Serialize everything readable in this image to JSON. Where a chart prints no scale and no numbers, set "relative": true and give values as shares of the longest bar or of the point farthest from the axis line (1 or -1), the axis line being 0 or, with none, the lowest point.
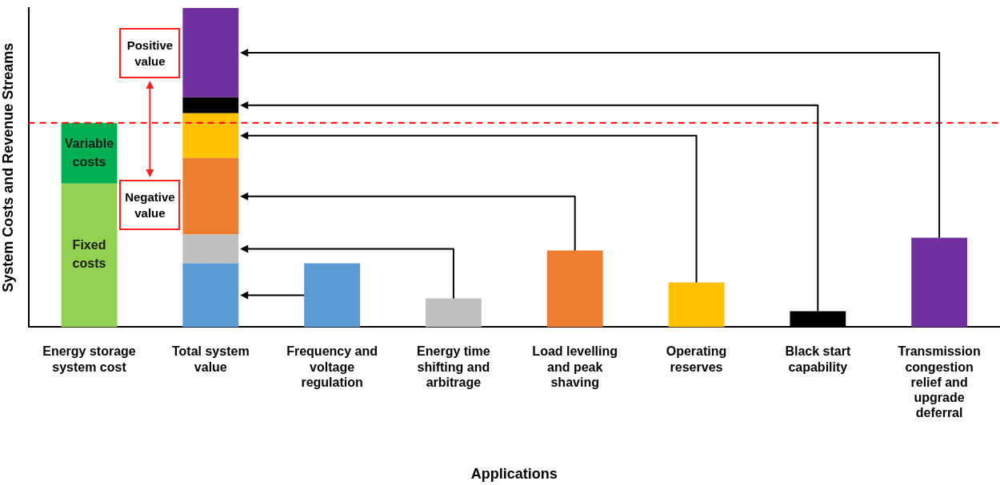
{
  "chart_data": {
    "type": "bar",
    "stacked": true,
    "relative": true,
    "xlabel": "Applications",
    "ylabel": "System Costs and Revenue Streams",
    "categories": [
      "Energy storage system cost",
      "Total system value",
      "Frequency and voltage regulation",
      "Energy time shifting and arbitrage",
      "Load levelling and peak shaving",
      "Operating reserves",
      "Black start capability",
      "Transmission congestion relief and upgrade deferral"
    ],
    "series": [
      {
        "name": "Fixed costs",
        "color": "#92d050",
        "values": [
          0.45,
          null,
          null,
          null,
          null,
          null,
          null,
          null
        ]
      },
      {
        "name": "Variable costs",
        "color": "#00b050",
        "values": [
          0.19,
          null,
          null,
          null,
          null,
          null,
          null,
          null
        ]
      },
      {
        "color": "#5b9bd5",
        "values": [
          null,
          0.2,
          0.2,
          null,
          null,
          null,
          null,
          null
        ]
      },
      {
        "color": "#bfbfbf",
        "values": [
          null,
          0.09,
          null,
          0.09,
          null,
          null,
          null,
          null
        ]
      },
      {
        "color": "#ed7d31",
        "values": [
          null,
          0.24,
          null,
          null,
          0.24,
          null,
          null,
          null
        ]
      },
      {
        "color": "#ffc000",
        "values": [
          null,
          0.14,
          null,
          null,
          null,
          0.14,
          null,
          null
        ]
      },
      {
        "color": "#000000",
        "values": [
          null,
          0.05,
          null,
          null,
          null,
          null,
          0.05,
          null
        ]
      },
      {
        "color": "#7030a0",
        "values": [
          null,
          0.28,
          null,
          null,
          null,
          null,
          null,
          0.28
        ]
      }
    ],
    "ref_lines": [
      {
        "axis": "y",
        "value": 0.64,
        "color": "#ff0000",
        "line_style": "dashed"
      }
    ],
    "annotations": [
      "Positive value",
      "Negative value"
    ],
    "grid": false,
    "legend": false
  }
}
